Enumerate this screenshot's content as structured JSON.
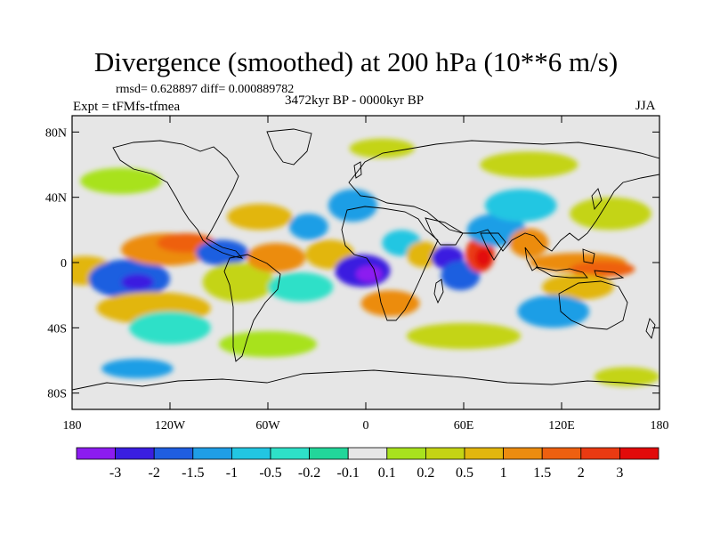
{
  "title": "Divergence (smoothed) at 200 hPa (10**6 m/s)",
  "stats": "rmsd= 0.628897 diff= 0.000889782",
  "experiment": "Expt = tFMfs-tfmea",
  "period": "3472kyr BP - 0000kyr BP",
  "season": "JJA",
  "lat_ticks": [
    {
      "label": "80N",
      "lat": 80
    },
    {
      "label": "40N",
      "lat": 40
    },
    {
      "label": "0",
      "lat": 0
    },
    {
      "label": "40S",
      "lat": -40
    },
    {
      "label": "80S",
      "lat": -80
    }
  ],
  "lon_ticks": [
    {
      "label": "180",
      "lon": -180
    },
    {
      "label": "120W",
      "lon": -120
    },
    {
      "label": "60W",
      "lon": -60
    },
    {
      "label": "0",
      "lon": 0
    },
    {
      "label": "60E",
      "lon": 60
    },
    {
      "label": "120E",
      "lon": 120
    },
    {
      "label": "180",
      "lon": 180
    }
  ],
  "colorbar": {
    "colors": [
      "#8c1cf0",
      "#3a1ee0",
      "#1f5ee0",
      "#1f9ee6",
      "#22c6e2",
      "#2ee0c8",
      "#22d69a",
      "#e6e6e6",
      "#a8e21e",
      "#c4d414",
      "#e2b60e",
      "#ec8c10",
      "#ee6010",
      "#ea3a12",
      "#e20a0a"
    ],
    "labels": [
      "-3",
      "-2",
      "-1.5",
      "-1",
      "-0.5",
      "-0.2",
      "-0.1",
      "0.1",
      "0.2",
      "0.5",
      "1",
      "1.5",
      "2",
      "3"
    ]
  },
  "field_blobs": [
    {
      "lon": -172,
      "lat": -5,
      "rx": 18,
      "ry": 9,
      "c": 10
    },
    {
      "lon": -145,
      "lat": -10,
      "rx": 25,
      "ry": 12,
      "c": 2
    },
    {
      "lon": -140,
      "lat": -12,
      "rx": 10,
      "ry": 5,
      "c": 1
    },
    {
      "lon": -130,
      "lat": -28,
      "rx": 35,
      "ry": 10,
      "c": 10
    },
    {
      "lon": -120,
      "lat": -40,
      "rx": 25,
      "ry": 10,
      "c": 5
    },
    {
      "lon": -122,
      "lat": 8,
      "rx": 28,
      "ry": 10,
      "c": 11
    },
    {
      "lon": -110,
      "lat": 12,
      "rx": 18,
      "ry": 6,
      "c": 12
    },
    {
      "lon": -88,
      "lat": 6,
      "rx": 16,
      "ry": 8,
      "c": 2
    },
    {
      "lon": -78,
      "lat": -12,
      "rx": 22,
      "ry": 12,
      "c": 9
    },
    {
      "lon": -65,
      "lat": 28,
      "rx": 20,
      "ry": 8,
      "c": 10
    },
    {
      "lon": -55,
      "lat": 3,
      "rx": 18,
      "ry": 9,
      "c": 11
    },
    {
      "lon": -40,
      "lat": -15,
      "rx": 20,
      "ry": 9,
      "c": 5
    },
    {
      "lon": -35,
      "lat": 22,
      "rx": 12,
      "ry": 8,
      "c": 3
    },
    {
      "lon": -22,
      "lat": 5,
      "rx": 15,
      "ry": 9,
      "c": 10
    },
    {
      "lon": -8,
      "lat": 35,
      "rx": 15,
      "ry": 10,
      "c": 3
    },
    {
      "lon": -2,
      "lat": -5,
      "rx": 17,
      "ry": 10,
      "c": 1
    },
    {
      "lon": 2,
      "lat": -7,
      "rx": 8,
      "ry": 5,
      "c": 0
    },
    {
      "lon": 15,
      "lat": -25,
      "rx": 18,
      "ry": 8,
      "c": 11
    },
    {
      "lon": 22,
      "lat": 12,
      "rx": 12,
      "ry": 8,
      "c": 4
    },
    {
      "lon": 35,
      "lat": 5,
      "rx": 10,
      "ry": 8,
      "c": 10
    },
    {
      "lon": 50,
      "lat": 3,
      "rx": 10,
      "ry": 7,
      "c": 1
    },
    {
      "lon": 58,
      "lat": -8,
      "rx": 12,
      "ry": 9,
      "c": 2
    },
    {
      "lon": 70,
      "lat": 5,
      "rx": 9,
      "ry": 11,
      "c": 13
    },
    {
      "lon": 72,
      "lat": 3,
      "rx": 5,
      "ry": 6,
      "c": 14
    },
    {
      "lon": 80,
      "lat": 20,
      "rx": 18,
      "ry": 10,
      "c": 3
    },
    {
      "lon": 95,
      "lat": 35,
      "rx": 22,
      "ry": 10,
      "c": 4
    },
    {
      "lon": 100,
      "lat": 12,
      "rx": 12,
      "ry": 9,
      "c": 11
    },
    {
      "lon": 130,
      "lat": 0,
      "rx": 30,
      "ry": 6,
      "c": 11
    },
    {
      "lon": 145,
      "lat": -4,
      "rx": 20,
      "ry": 5,
      "c": 12
    },
    {
      "lon": 130,
      "lat": -15,
      "rx": 22,
      "ry": 8,
      "c": 10
    },
    {
      "lon": 115,
      "lat": -30,
      "rx": 22,
      "ry": 10,
      "c": 3
    },
    {
      "lon": 150,
      "lat": 30,
      "rx": 25,
      "ry": 10,
      "c": 9
    },
    {
      "lon": 60,
      "lat": -45,
      "rx": 35,
      "ry": 8,
      "c": 9
    },
    {
      "lon": -60,
      "lat": -50,
      "rx": 30,
      "ry": 8,
      "c": 8
    },
    {
      "lon": -150,
      "lat": 50,
      "rx": 25,
      "ry": 8,
      "c": 8
    },
    {
      "lon": 100,
      "lat": 60,
      "rx": 30,
      "ry": 8,
      "c": 9
    },
    {
      "lon": 10,
      "lat": 70,
      "rx": 20,
      "ry": 6,
      "c": 9
    },
    {
      "lon": 160,
      "lat": -70,
      "rx": 20,
      "ry": 6,
      "c": 9
    },
    {
      "lon": -140,
      "lat": -65,
      "rx": 22,
      "ry": 6,
      "c": 3
    }
  ]
}
